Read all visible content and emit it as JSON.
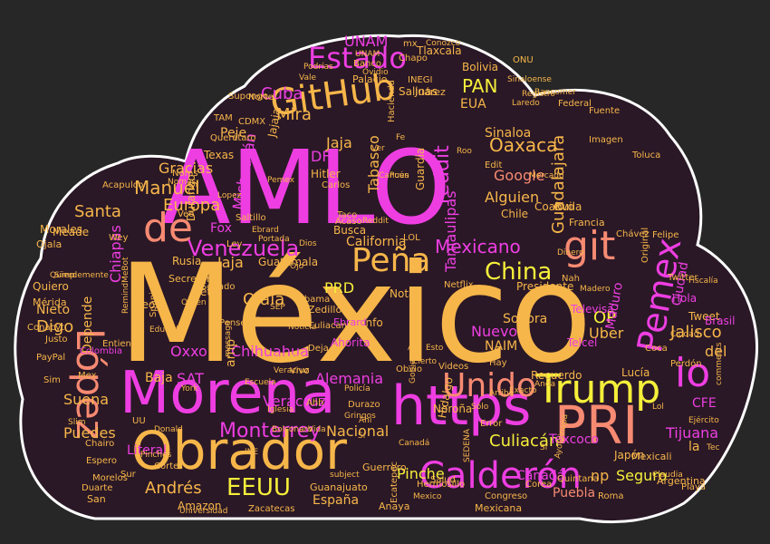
{
  "palette": {
    "background": "#272727",
    "cloud_fill": "#2a1826",
    "cloud_stroke": "#ffffff",
    "magenta": "#ee3ee2",
    "orange": "#f7b64a",
    "salmon": "#f78a72",
    "yellow": "#f5ef3a"
  },
  "words": [
    {
      "text": "México",
      "color": "orange"
    },
    {
      "text": "AMLO",
      "color": "magenta"
    },
    {
      "text": "Morena",
      "color": "magenta"
    },
    {
      "text": "Obrador",
      "color": "orange"
    },
    {
      "text": "https",
      "color": "magenta"
    },
    {
      "text": "PRI",
      "color": "salmon"
    },
    {
      "text": "López",
      "color": "salmon"
    },
    {
      "text": "Trump",
      "color": "yellow"
    },
    {
      "text": "Calderón",
      "color": "magenta"
    },
    {
      "text": "GitHub",
      "color": "orange"
    },
    {
      "text": "Peña",
      "color": "orange"
    },
    {
      "text": "git",
      "color": "salmon"
    },
    {
      "text": "de",
      "color": "salmon"
    },
    {
      "text": "Unido",
      "color": "salmon"
    },
    {
      "text": "Estado",
      "color": "magenta"
    },
    {
      "text": "Pemex",
      "color": "magenta"
    },
    {
      "text": "EEUU",
      "color": "yellow"
    },
    {
      "text": "io",
      "color": "magenta"
    },
    {
      "text": "Venezuela",
      "color": "magenta"
    },
    {
      "text": "Monterrey",
      "color": "magenta"
    },
    {
      "text": "Mexicano",
      "color": "magenta"
    },
    {
      "text": "reddit",
      "color": "magenta"
    },
    {
      "text": "Manuel",
      "color": "orange"
    },
    {
      "text": "China",
      "color": "yellow"
    },
    {
      "text": "Guadalajara",
      "color": "orange"
    },
    {
      "text": "Oaxaca",
      "color": "orange"
    },
    {
      "text": "Sinaloa",
      "color": "orange"
    },
    {
      "text": "PAN",
      "color": "yellow"
    },
    {
      "text": "Google",
      "color": "salmon"
    },
    {
      "text": "Alguien",
      "color": "orange"
    },
    {
      "text": "Veracruz",
      "color": "magenta"
    },
    {
      "text": "Chihuahua",
      "color": "magenta"
    },
    {
      "text": "Culiacán",
      "color": "yellow"
    },
    {
      "text": "Nacional",
      "color": "orange"
    },
    {
      "text": "Tijuana",
      "color": "magenta"
    },
    {
      "text": "Jalisco",
      "color": "orange"
    },
    {
      "text": "Texcoco",
      "color": "magenta"
    },
    {
      "text": "Canadá",
      "color": "magenta"
    },
    {
      "text": "Puebla",
      "color": "salmon"
    },
    {
      "text": "Seguro",
      "color": "yellow"
    },
    {
      "text": "np",
      "color": "orange"
    },
    {
      "text": "Andrés",
      "color": "orange"
    },
    {
      "text": "España",
      "color": "orange"
    },
    {
      "text": "Pinche",
      "color": "yellow"
    },
    {
      "text": "Oxxo",
      "color": "magenta"
    },
    {
      "text": "SAT",
      "color": "magenta"
    },
    {
      "text": "Europa",
      "color": "orange"
    },
    {
      "text": "Santa",
      "color": "orange"
    },
    {
      "text": "Mira",
      "color": "orange"
    },
    {
      "text": "Cuba",
      "color": "magenta"
    },
    {
      "text": "UNAM",
      "color": "magenta"
    },
    {
      "text": "Gracias",
      "color": "orange"
    },
    {
      "text": "Chiapas",
      "color": "magenta"
    },
    {
      "text": "Nieto",
      "color": "orange"
    },
    {
      "text": "Digo",
      "color": "orange"
    },
    {
      "text": "Suena",
      "color": "orange"
    },
    {
      "text": "Puedes",
      "color": "orange"
    },
    {
      "text": "Depende",
      "color": "orange"
    },
    {
      "text": "Alemania",
      "color": "magenta"
    },
    {
      "text": "Nuevo",
      "color": "magenta"
    },
    {
      "text": "Uber",
      "color": "orange"
    },
    {
      "text": "Sonora",
      "color": "orange"
    },
    {
      "text": "OP",
      "color": "yellow"
    },
    {
      "text": "NAIM",
      "color": "orange"
    },
    {
      "text": "PRD",
      "color": "yellow"
    },
    {
      "text": "Ojalá",
      "color": "orange"
    },
    {
      "text": "Jaja",
      "color": "orange"
    },
    {
      "text": "California",
      "color": "orange"
    },
    {
      "text": "DF",
      "color": "magenta"
    },
    {
      "text": "Michoacán",
      "color": "magenta"
    },
    {
      "text": "Tabasco",
      "color": "orange"
    },
    {
      "text": "Maduro",
      "color": "magenta"
    },
    {
      "text": "Ciudad",
      "color": "magenta"
    },
    {
      "text": "CFE",
      "color": "magenta"
    },
    {
      "text": "del",
      "color": "orange"
    },
    {
      "text": "la",
      "color": "orange"
    },
    {
      "text": "Lucía",
      "color": "orange"
    },
    {
      "text": "Japón",
      "color": "orange"
    },
    {
      "text": "Fox",
      "color": "magenta"
    },
    {
      "text": "Meade",
      "color": "orange"
    },
    {
      "text": "Baja",
      "color": "orange"
    },
    {
      "text": "Tamaulipas",
      "color": "magenta"
    },
    {
      "text": "Literal",
      "color": "magenta"
    },
    {
      "text": "Amazon",
      "color": "orange"
    },
    {
      "text": "Hitler",
      "color": "orange"
    },
    {
      "text": "Bolivia",
      "color": "orange"
    },
    {
      "text": "EUA",
      "color": "orange"
    },
    {
      "text": "Salinas",
      "color": "orange"
    },
    {
      "text": "Peje",
      "color": "orange"
    },
    {
      "text": "Acapulco",
      "color": "orange"
    },
    {
      "text": "Guerrero",
      "color": "orange"
    },
    {
      "text": "Coahuila",
      "color": "orange"
    },
    {
      "text": "Evo",
      "color": "orange"
    },
    {
      "text": "Presidente",
      "color": "orange"
    },
    {
      "text": "Netflix",
      "color": "orange"
    },
    {
      "text": "Twitter",
      "color": "orange"
    },
    {
      "text": "Tweet",
      "color": "orange"
    },
    {
      "text": "Hola",
      "color": "magenta"
    },
    {
      "text": "Brasil",
      "color": "magenta"
    },
    {
      "text": "Argentina",
      "color": "orange"
    },
    {
      "text": "Francia",
      "color": "orange"
    },
    {
      "text": "Mexicali",
      "color": "orange"
    },
    {
      "text": "Colombia",
      "color": "magenta"
    },
    {
      "text": "Mérida",
      "color": "orange"
    },
    {
      "text": "Quiero",
      "color": "orange"
    },
    {
      "text": "Rusia",
      "color": "orange"
    },
    {
      "text": "Neta",
      "color": "orange"
    },
    {
      "text": "Secretaria",
      "color": "orange"
    },
    {
      "text": "Guatemala",
      "color": "orange"
    },
    {
      "text": "Chile",
      "color": "orange"
    },
    {
      "text": "Busca",
      "color": "orange"
    },
    {
      "text": "Ahorita",
      "color": "magenta"
    },
    {
      "text": "Zedillo",
      "color": "orange"
    },
    {
      "text": "Info",
      "color": "orange"
    },
    {
      "text": "Nota",
      "color": "orange"
    },
    {
      "text": "Obama",
      "color": "orange"
    },
    {
      "text": "Ebrard",
      "color": "magenta"
    },
    {
      "text": "Durango",
      "color": "orange"
    },
    {
      "text": "Leon",
      "color": "orange"
    },
    {
      "text": "Morales",
      "color": "orange"
    },
    {
      "text": "Querétaro",
      "color": "orange"
    },
    {
      "text": "Conacyt",
      "color": "orange"
    },
    {
      "text": "Culiacan",
      "color": "orange"
    },
    {
      "text": "Recuerdo",
      "color": "orange"
    },
    {
      "text": "Televisa",
      "color": "magenta"
    },
    {
      "text": "Telcel",
      "color": "magenta"
    },
    {
      "text": "Noroña",
      "color": "orange"
    },
    {
      "text": "Hidalgo",
      "color": "orange"
    },
    {
      "text": "Ecatepec",
      "color": "orange"
    },
    {
      "text": "Anaya",
      "color": "orange"
    },
    {
      "text": "Corea",
      "color": "orange"
    },
    {
      "text": "Quintana",
      "color": "orange"
    },
    {
      "text": "Roma",
      "color": "orange"
    },
    {
      "text": "Guanajuato",
      "color": "orange"
    },
    {
      "text": "Zacatecas",
      "color": "orange"
    },
    {
      "text": "Chapo",
      "color": "orange"
    },
    {
      "text": "Palacio",
      "color": "orange"
    },
    {
      "text": "INEGI",
      "color": "orange"
    },
    {
      "text": "Federal",
      "color": "orange"
    },
    {
      "text": "Imagen",
      "color": "orange"
    },
    {
      "text": "Fuente",
      "color": "orange"
    },
    {
      "text": "Felipe",
      "color": "orange"
    },
    {
      "text": "Hermosillo",
      "color": "orange"
    },
    {
      "text": "Chávez",
      "color": "orange"
    },
    {
      "text": "Congreso",
      "color": "orange"
    },
    {
      "text": "Sur",
      "color": "orange"
    },
    {
      "text": "Hacienda",
      "color": "orange"
    },
    {
      "text": "Juárez",
      "color": "orange"
    },
    {
      "text": "Tlaxcala",
      "color": "orange"
    },
    {
      "text": "Senado",
      "color": "orange"
    },
    {
      "text": "Entiendo",
      "color": "orange"
    },
    {
      "text": "Playa",
      "color": "orange"
    },
    {
      "text": "Corte",
      "color": "orange"
    },
    {
      "text": "Carlos",
      "color": "orange"
    },
    {
      "text": "Taco",
      "color": "orange"
    },
    {
      "text": "Acaso",
      "color": "orange"
    },
    {
      "text": "Veo",
      "color": "orange"
    },
    {
      "text": "Texas",
      "color": "orange"
    },
    {
      "text": "Noms",
      "color": "orange"
    },
    {
      "text": "Vivo",
      "color": "orange"
    },
    {
      "text": "Deja",
      "color": "orange"
    },
    {
      "text": "Edit",
      "color": "orange"
    },
    {
      "text": "LOL",
      "color": "orange"
    },
    {
      "text": "Error",
      "color": "orange"
    },
    {
      "text": "Hay",
      "color": "orange"
    },
    {
      "text": "Perdón",
      "color": "orange"
    },
    {
      "text": "Original",
      "color": "orange"
    },
    {
      "text": "Coca",
      "color": "orange"
    },
    {
      "text": "Toluca",
      "color": "orange"
    },
    {
      "text": "Banco",
      "color": "orange"
    },
    {
      "text": "Mexico",
      "color": "orange"
    },
    {
      "text": "Justo",
      "color": "orange"
    },
    {
      "text": "Ahh",
      "color": "orange"
    },
    {
      "text": "Durazo",
      "color": "orange"
    },
    {
      "text": "Gringos",
      "color": "orange"
    },
    {
      "text": "Escuela",
      "color": "orange"
    },
    {
      "text": "Ojala",
      "color": "orange"
    },
    {
      "text": "Saltillo",
      "color": "orange"
    },
    {
      "text": "Duarte",
      "color": "orange"
    },
    {
      "text": "Vida",
      "color": "orange"
    },
    {
      "text": "Nah",
      "color": "orange"
    },
    {
      "text": "Iglesia",
      "color": "orange"
    },
    {
      "text": "Bolsonaro",
      "color": "orange"
    },
    {
      "text": "Fe",
      "color": "orange"
    },
    {
      "text": "Obvio",
      "color": "orange"
    },
    {
      "text": "Ahi",
      "color": "orange"
    },
    {
      "text": "Pensé",
      "color": "orange"
    },
    {
      "text": "Sí",
      "color": "orange"
    },
    {
      "text": "UU",
      "color": "orange"
    },
    {
      "text": "Mex",
      "color": "orange"
    },
    {
      "text": "Reddit",
      "color": "orange"
    },
    {
      "text": "CDMX",
      "color": "orange"
    },
    {
      "text": "Pues",
      "color": "orange"
    },
    {
      "text": "Ver",
      "color": "orange"
    },
    {
      "text": "Ley",
      "color": "orange"
    },
    {
      "text": "Así",
      "color": "orange"
    },
    {
      "text": "Cierto",
      "color": "orange"
    },
    {
      "text": "Gobierno",
      "color": "orange"
    },
    {
      "text": "Policía",
      "color": "orange"
    },
    {
      "text": "Estados",
      "color": "orange"
    },
    {
      "text": "Supongo",
      "color": "orange"
    },
    {
      "text": "Podrías",
      "color": "orange"
    },
    {
      "text": "Vale",
      "color": "orange"
    },
    {
      "text": "Lopez",
      "color": "orange"
    },
    {
      "text": "Esto",
      "color": "orange"
    },
    {
      "text": "Roo",
      "color": "orange"
    },
    {
      "text": "Wey",
      "color": "orange"
    },
    {
      "text": "Orden",
      "color": "orange"
    },
    {
      "text": "Guardia",
      "color": "orange"
    },
    {
      "text": "Dios",
      "color": "orange"
    },
    {
      "text": "Norte",
      "color": "orange"
    },
    {
      "text": "Mexicana",
      "color": "orange"
    },
    {
      "text": "Videos",
      "color": "orange"
    },
    {
      "text": "Salud",
      "color": "orange"
    },
    {
      "text": "Universidad",
      "color": "orange"
    },
    {
      "text": "Morelos",
      "color": "orange"
    },
    {
      "text": "Espero",
      "color": "orange"
    },
    {
      "text": "Eduardo",
      "color": "orange"
    },
    {
      "text": "Chairo",
      "color": "orange"
    },
    {
      "text": "Donald",
      "color": "orange"
    },
    {
      "text": "PayPal",
      "color": "orange"
    },
    {
      "text": "Sim",
      "color": "orange"
    },
    {
      "text": "York",
      "color": "orange"
    },
    {
      "text": "TAM",
      "color": "orange"
    },
    {
      "text": "Slim",
      "color": "orange"
    },
    {
      "text": "Lol",
      "color": "orange"
    },
    {
      "text": "San",
      "color": "orange"
    },
    {
      "text": "Ciudad",
      "color": "orange"
    },
    {
      "text": "Pinches",
      "color": "orange"
    },
    {
      "text": "Ebrard",
      "color": "orange"
    },
    {
      "text": "SEP",
      "color": "orange"
    },
    {
      "text": "INE",
      "color": "orange"
    },
    {
      "text": "ONU",
      "color": "orange"
    },
    {
      "text": "mx",
      "color": "orange"
    },
    {
      "text": "UNAM",
      "color": "orange"
    },
    {
      "text": "Bancomer",
      "color": "orange"
    },
    {
      "text": "Registro",
      "color": "orange"
    },
    {
      "text": "Conozco",
      "color": "orange"
    },
    {
      "text": "Laredo",
      "color": "orange"
    },
    {
      "text": "Sinaloense",
      "color": "orange"
    },
    {
      "text": "Ovidio",
      "color": "orange"
    },
    {
      "text": "Mercado",
      "color": "orange"
    },
    {
      "text": "Nomas",
      "color": "orange"
    },
    {
      "text": "Simplemente",
      "color": "orange"
    },
    {
      "text": "Jajaja",
      "color": "orange"
    },
    {
      "text": "Portada",
      "color": "orange"
    },
    {
      "text": "Pemex",
      "color": "orange"
    },
    {
      "text": "Jaja",
      "color": "orange"
    },
    {
      "text": "comments",
      "color": "orange"
    },
    {
      "text": "subject",
      "color": "orange"
    },
    {
      "text": "message",
      "color": "orange"
    },
    {
      "text": "RemindMeBot",
      "color": "orange"
    },
    {
      "text": "Spanish",
      "color": "orange"
    },
    {
      "text": "Anda",
      "color": "orange"
    },
    {
      "text": "Exacto",
      "color": "orange"
    },
    {
      "text": "Arriba",
      "color": "orange"
    },
    {
      "text": "SEDENA",
      "color": "orange"
    },
    {
      "text": "Dinero",
      "color": "orange"
    },
    {
      "text": "Tec",
      "color": "orange"
    },
    {
      "text": "Sólo",
      "color": "orange"
    },
    {
      "text": "Ejército",
      "color": "orange"
    },
    {
      "text": "Sí",
      "color": "orange"
    },
    {
      "text": "Ayotzinapa",
      "color": "orange"
    },
    {
      "text": "Madero",
      "color": "orange"
    },
    {
      "text": "Fiscalía",
      "color": "orange"
    },
    {
      "text": "Quiero",
      "color": "orange"
    },
    {
      "text": "amp",
      "color": "orange"
    },
    {
      "text": "Noticia",
      "color": "orange"
    },
    {
      "text": "Entonces",
      "color": "orange"
    },
    {
      "text": "Veracruz",
      "color": "orange"
    },
    {
      "text": "Claudia",
      "color": "orange"
    },
    {
      "text": "Cancún",
      "color": "orange"
    },
    {
      "text": "Ojo",
      "color": "orange"
    },
    {
      "text": "Canadá",
      "color": "orange"
    }
  ]
}
